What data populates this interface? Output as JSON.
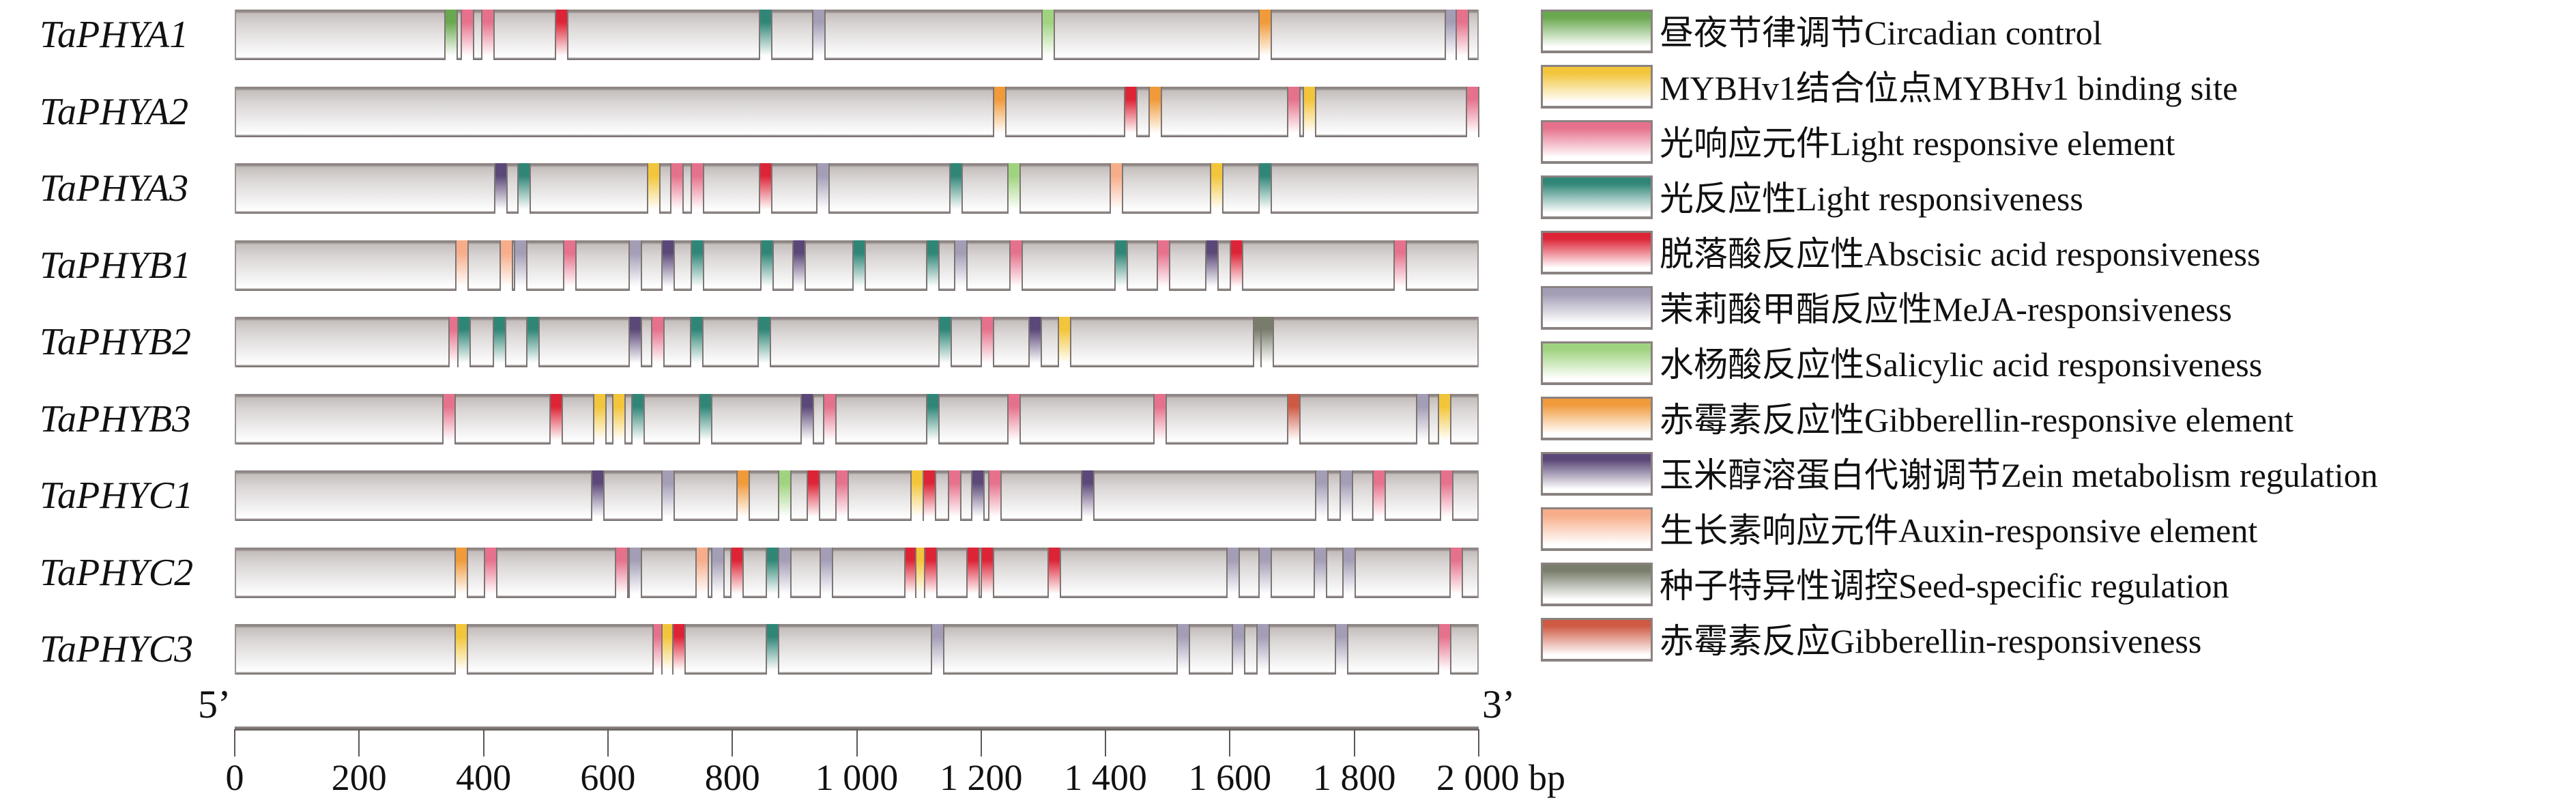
{
  "types": {
    "circadian": {
      "label": "昼夜节律调节Circadian control",
      "color": "#6aa84f"
    },
    "myb": {
      "label": "MYBHv1结合位点MYBHv1 binding site",
      "color": "#f2c53a"
    },
    "lre": {
      "label": "光响应元件Light responsive element",
      "color": "#e6718c"
    },
    "lr": {
      "label": "光反应性Light responsiveness",
      "color": "#2f8677"
    },
    "aba": {
      "label": "脱落酸反应性Abscisic acid responsiveness",
      "color": "#dd2437"
    },
    "meja": {
      "label": "茉莉酸甲酯反应性MeJA-responsiveness",
      "color": "#a39db6"
    },
    "sa": {
      "label": "水杨酸反应性Salicylic acid responsiveness",
      "color": "#9fd37f"
    },
    "gare": {
      "label": "赤霉素反应性Gibberellin-responsive element",
      "color": "#f09a3a"
    },
    "zein": {
      "label": "玉米醇溶蛋白代谢调节Zein metabolism regulation",
      "color": "#5b4878"
    },
    "auxin": {
      "label": "生长素响应元件Auxin-responsive element",
      "color": "#f7ad8a"
    },
    "seed": {
      "label": "种子特异性调控Seed-specific regulation",
      "color": "#787d6b"
    },
    "gar": {
      "label": "赤霉素反应Gibberellin-responsiveness",
      "color": "#cf5a43"
    }
  },
  "legend_order": [
    "circadian",
    "myb",
    "lre",
    "lr",
    "aba",
    "meja",
    "sa",
    "gare",
    "zein",
    "auxin",
    "seed",
    "gar"
  ],
  "tracks": [
    {
      "name": "TaPHYA1",
      "elements": [
        [
          346,
          "circadian"
        ],
        [
          372,
          "lre"
        ],
        [
          405,
          "lre"
        ],
        [
          523,
          "aba"
        ],
        [
          851,
          "lr"
        ],
        [
          937,
          "meja"
        ],
        [
          1305,
          "sa"
        ],
        [
          1654,
          "gare"
        ],
        [
          1954,
          "meja"
        ],
        [
          1972,
          "lre"
        ]
      ]
    },
    {
      "name": "TaPHYA2",
      "elements": [
        [
          1228,
          "gare"
        ],
        [
          1438,
          "aba"
        ],
        [
          1478,
          "gare"
        ],
        [
          1700,
          "lre"
        ],
        [
          1726,
          "myb"
        ],
        [
          1988,
          "lre"
        ]
      ]
    },
    {
      "name": "TaPHYA3",
      "elements": [
        [
          426,
          "zein"
        ],
        [
          463,
          "lr"
        ],
        [
          671,
          "myb"
        ],
        [
          709,
          "lre"
        ],
        [
          742,
          "lre"
        ],
        [
          851,
          "aba"
        ],
        [
          943,
          "meja"
        ],
        [
          1157,
          "lr"
        ],
        [
          1251,
          "sa"
        ],
        [
          1415,
          "auxin"
        ],
        [
          1577,
          "myb"
        ],
        [
          1654,
          "lr"
        ]
      ]
    },
    {
      "name": "TaPHYB1",
      "elements": [
        [
          363,
          "auxin"
        ],
        [
          434,
          "auxin"
        ],
        [
          458,
          "meja"
        ],
        [
          537,
          "lre"
        ],
        [
          642,
          "meja"
        ],
        [
          695,
          "zein"
        ],
        [
          742,
          "lr"
        ],
        [
          854,
          "lr"
        ],
        [
          905,
          "zein"
        ],
        [
          1002,
          "lr"
        ],
        [
          1120,
          "lr"
        ],
        [
          1165,
          "meja"
        ],
        [
          1254,
          "lre"
        ],
        [
          1423,
          "lr"
        ],
        [
          1491,
          "lre"
        ],
        [
          1569,
          "zein"
        ],
        [
          1608,
          "aba"
        ],
        [
          1872,
          "lre"
        ]
      ]
    },
    {
      "name": "TaPHYB2",
      "elements": [
        [
          352,
          "lre"
        ],
        [
          366,
          "lr"
        ],
        [
          423,
          "lr"
        ],
        [
          477,
          "lr"
        ],
        [
          642,
          "zein"
        ],
        [
          678,
          "lre"
        ],
        [
          740,
          "lr"
        ],
        [
          849,
          "lr"
        ],
        [
          1140,
          "lr"
        ],
        [
          1208,
          "lre"
        ],
        [
          1285,
          "zein"
        ],
        [
          1332,
          "myb"
        ],
        [
          1646,
          "seed"
        ],
        [
          1658,
          "seed"
        ]
      ]
    },
    {
      "name": "TaPHYB3",
      "elements": [
        [
          342,
          "lre"
        ],
        [
          515,
          "aba"
        ],
        [
          585,
          "myb"
        ],
        [
          615,
          "myb"
        ],
        [
          646,
          "lr"
        ],
        [
          755,
          "lr"
        ],
        [
          918,
          "zein"
        ],
        [
          955,
          "lre"
        ],
        [
          1120,
          "lr"
        ],
        [
          1251,
          "lre"
        ],
        [
          1485,
          "lre"
        ],
        [
          1700,
          "gar"
        ],
        [
          1908,
          "meja"
        ],
        [
          1943,
          "myb"
        ]
      ]
    },
    {
      "name": "TaPHYC1",
      "elements": [
        [
          582,
          "zein"
        ],
        [
          695,
          "meja"
        ],
        [
          815,
          "gare"
        ],
        [
          882,
          "sa"
        ],
        [
          928,
          "aba"
        ],
        [
          974,
          "lre"
        ],
        [
          1095,
          "myb"
        ],
        [
          1115,
          "aba"
        ],
        [
          1155,
          "lre"
        ],
        [
          1192,
          "zein"
        ],
        [
          1220,
          "lre"
        ],
        [
          1369,
          "zein"
        ],
        [
          1746,
          "meja"
        ],
        [
          1785,
          "meja"
        ],
        [
          1838,
          "lre"
        ],
        [
          1946,
          "lre"
        ]
      ]
    },
    {
      "name": "TaPHYC2",
      "elements": [
        [
          362,
          "gare"
        ],
        [
          409,
          "lre"
        ],
        [
          620,
          "lre"
        ],
        [
          642,
          "meja"
        ],
        [
          749,
          "auxin"
        ],
        [
          774,
          "meja"
        ],
        [
          805,
          "aba"
        ],
        [
          862,
          "lr"
        ],
        [
          882,
          "meja"
        ],
        [
          949,
          "meja"
        ],
        [
          1085,
          "aba"
        ],
        [
          1103,
          "myb"
        ],
        [
          1117,
          "aba"
        ],
        [
          1185,
          "aba"
        ],
        [
          1208,
          "aba"
        ],
        [
          1315,
          "aba"
        ],
        [
          1603,
          "meja"
        ],
        [
          1654,
          "meja"
        ],
        [
          1743,
          "meja"
        ],
        [
          1789,
          "meja"
        ],
        [
          1962,
          "lre"
        ]
      ]
    },
    {
      "name": "TaPHYC3",
      "elements": [
        [
          362,
          "myb"
        ],
        [
          680,
          "lre"
        ],
        [
          695,
          "myb"
        ],
        [
          712,
          "aba"
        ],
        [
          862,
          "lr"
        ],
        [
          1128,
          "meja"
        ],
        [
          1523,
          "meja"
        ],
        [
          1612,
          "meja"
        ],
        [
          1651,
          "meja"
        ],
        [
          1777,
          "meja"
        ],
        [
          1943,
          "lre"
        ]
      ]
    }
  ],
  "axis": {
    "min": 0,
    "max": 2000,
    "ticks": [
      0,
      200,
      400,
      600,
      800,
      1000,
      1200,
      1400,
      1600,
      1800,
      2000
    ],
    "tick_labels": [
      "0",
      "200",
      "400",
      "600",
      "800",
      "1 000",
      "1 200",
      "1 400",
      "1 600",
      "1 800",
      "2 000 bp"
    ],
    "five_prime": "5’",
    "three_prime": "3’"
  }
}
